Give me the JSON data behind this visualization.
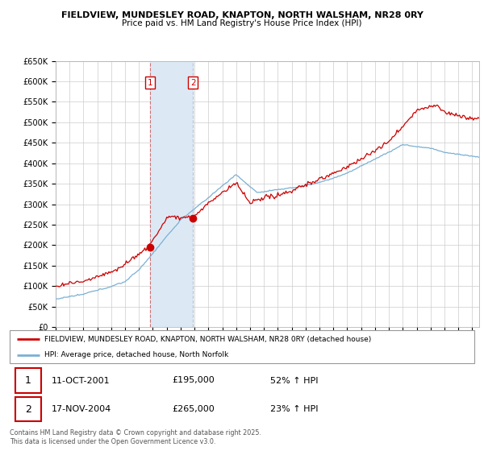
{
  "title1": "FIELDVIEW, MUNDESLEY ROAD, KNAPTON, NORTH WALSHAM, NR28 0RY",
  "title2": "Price paid vs. HM Land Registry's House Price Index (HPI)",
  "ylabel_ticks": [
    "£0",
    "£50K",
    "£100K",
    "£150K",
    "£200K",
    "£250K",
    "£300K",
    "£350K",
    "£400K",
    "£450K",
    "£500K",
    "£550K",
    "£600K",
    "£650K"
  ],
  "ytick_values": [
    0,
    50000,
    100000,
    150000,
    200000,
    250000,
    300000,
    350000,
    400000,
    450000,
    500000,
    550000,
    600000,
    650000
  ],
  "legend_line1": "FIELDVIEW, MUNDESLEY ROAD, KNAPTON, NORTH WALSHAM, NR28 0RY (detached house)",
  "legend_line2": "HPI: Average price, detached house, North Norfolk",
  "sale1_date": "11-OCT-2001",
  "sale1_price": "£195,000",
  "sale1_hpi": "52% ↑ HPI",
  "sale2_date": "17-NOV-2004",
  "sale2_price": "£265,000",
  "sale2_hpi": "23% ↑ HPI",
  "footnote": "Contains HM Land Registry data © Crown copyright and database right 2025.\nThis data is licensed under the Open Government Licence v3.0.",
  "sale1_year": 2001.79,
  "sale2_year": 2004.88,
  "property_color": "#cc0000",
  "hpi_color": "#7ab0d4",
  "highlight_color": "#dce9f5",
  "background_color": "#ffffff",
  "grid_color": "#cccccc",
  "xmin": 1995,
  "xmax": 2025.5,
  "ymin": 0,
  "ymax": 650000
}
